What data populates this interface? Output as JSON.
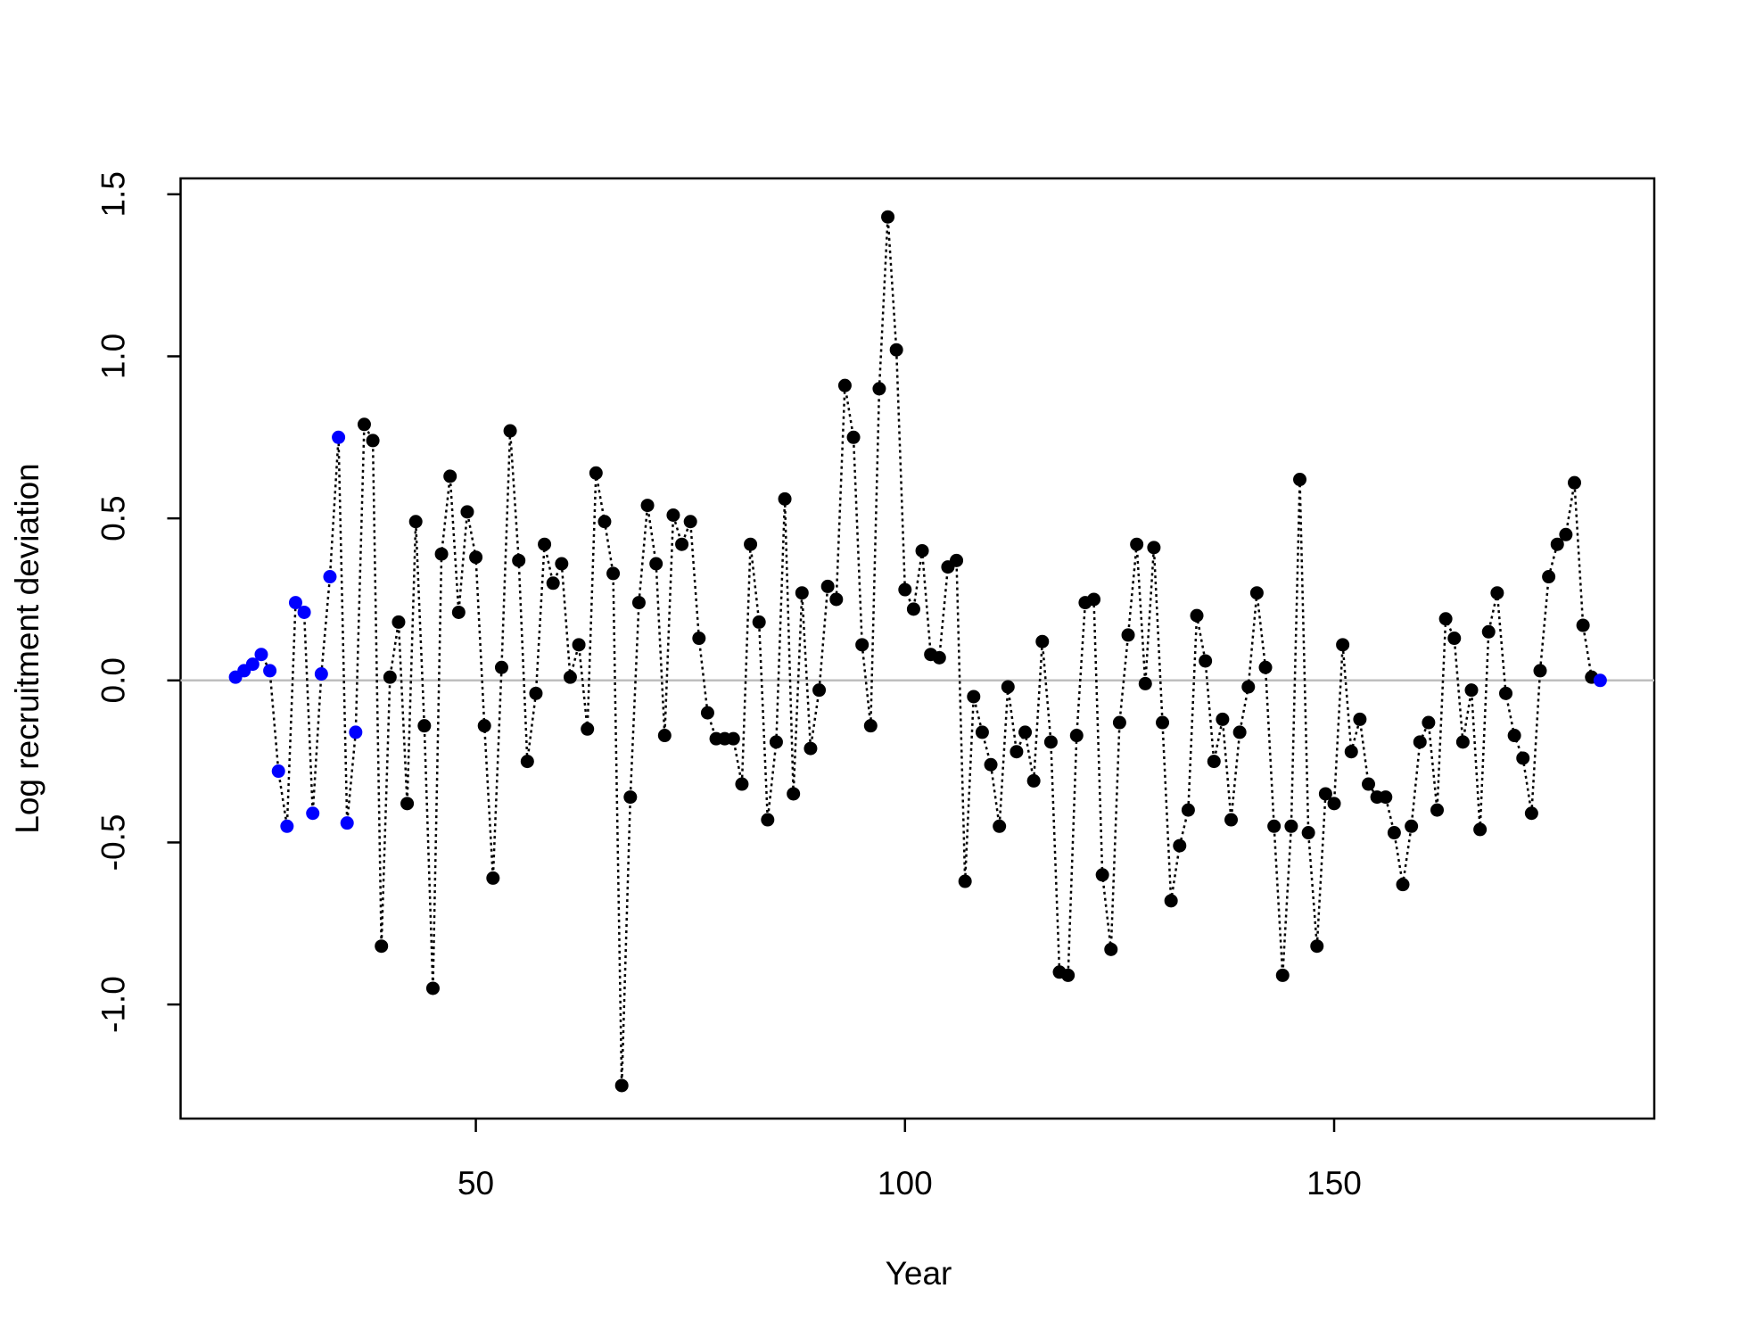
{
  "chart_data": {
    "type": "scatter",
    "xlabel": "Year",
    "ylabel": "Log recruitment deviation",
    "x": [
      22,
      23,
      24,
      25,
      26,
      27,
      28,
      29,
      30,
      31,
      32,
      33,
      34,
      35,
      36,
      37,
      38,
      39,
      40,
      41,
      42,
      43,
      44,
      45,
      46,
      47,
      48,
      49,
      50,
      51,
      52,
      53,
      54,
      55,
      56,
      57,
      58,
      59,
      60,
      61,
      62,
      63,
      64,
      65,
      66,
      67,
      68,
      69,
      70,
      71,
      72,
      73,
      74,
      75,
      76,
      77,
      78,
      79,
      80,
      81,
      82,
      83,
      84,
      85,
      86,
      87,
      88,
      89,
      90,
      91,
      92,
      93,
      94,
      95,
      96,
      97,
      98,
      99,
      100,
      101,
      102,
      103,
      104,
      105,
      106,
      107,
      108,
      109,
      110,
      111,
      112,
      113,
      114,
      115,
      116,
      117,
      118,
      119,
      120,
      121,
      122,
      123,
      124,
      125,
      126,
      127,
      128,
      129,
      130,
      131,
      132,
      133,
      134,
      135,
      136,
      137,
      138,
      139,
      140,
      141,
      142,
      143,
      144,
      145,
      146,
      147,
      148,
      149,
      150,
      151,
      152,
      153,
      154,
      155,
      156,
      157,
      158,
      159,
      160,
      161,
      162,
      163,
      164,
      165,
      166,
      167,
      168,
      169,
      170,
      171,
      172,
      173,
      174,
      175,
      176,
      177,
      178,
      179,
      180,
      181
    ],
    "values": [
      0.01,
      0.03,
      0.05,
      0.08,
      0.03,
      -0.28,
      -0.45,
      0.24,
      0.21,
      -0.41,
      0.02,
      0.32,
      0.75,
      -0.44,
      -0.16,
      0.79,
      0.74,
      -0.82,
      0.01,
      0.18,
      -0.38,
      0.49,
      -0.14,
      -0.95,
      0.39,
      0.63,
      0.21,
      0.52,
      0.38,
      -0.14,
      -0.61,
      0.04,
      0.77,
      0.37,
      -0.25,
      -0.04,
      0.42,
      0.3,
      0.36,
      0.01,
      0.11,
      -0.15,
      0.64,
      0.49,
      0.33,
      -1.25,
      -0.36,
      0.24,
      0.54,
      0.36,
      -0.17,
      0.51,
      0.42,
      0.49,
      0.13,
      -0.1,
      -0.18,
      -0.18,
      -0.18,
      -0.32,
      0.42,
      0.18,
      -0.43,
      -0.19,
      0.56,
      -0.35,
      0.27,
      -0.21,
      -0.03,
      0.29,
      0.25,
      0.91,
      0.75,
      0.11,
      -0.14,
      0.9,
      1.43,
      1.02,
      0.28,
      0.22,
      0.4,
      0.08,
      0.07,
      0.35,
      0.37,
      -0.62,
      -0.05,
      -0.16,
      -0.26,
      -0.45,
      -0.02,
      -0.22,
      -0.16,
      -0.31,
      0.12,
      -0.19,
      -0.9,
      -0.91,
      -0.17,
      0.24,
      0.25,
      -0.6,
      -0.83,
      -0.13,
      0.14,
      0.42,
      -0.01,
      0.41,
      -0.13,
      -0.68,
      -0.51,
      -0.4,
      0.2,
      0.06,
      -0.25,
      -0.12,
      -0.43,
      -0.16,
      -0.02,
      0.27,
      0.04,
      -0.45,
      -0.91,
      -0.45,
      0.62,
      -0.47,
      -0.82,
      -0.35,
      -0.38,
      0.11,
      -0.22,
      -0.12,
      -0.32,
      -0.36,
      -0.36,
      -0.47,
      -0.63,
      -0.45,
      -0.19,
      -0.13,
      -0.4,
      0.19,
      0.13,
      -0.19,
      -0.03,
      -0.46,
      0.15,
      0.27,
      -0.04,
      -0.17,
      -0.24,
      -0.41,
      0.03,
      0.32,
      0.42,
      0.45,
      0.61,
      0.17,
      0.01,
      0.0
    ],
    "colors": [
      "#0000ff",
      "#0000ff",
      "#0000ff",
      "#0000ff",
      "#0000ff",
      "#0000ff",
      "#0000ff",
      "#0000ff",
      "#0000ff",
      "#0000ff",
      "#0000ff",
      "#0000ff",
      "#0000ff",
      "#0000ff",
      "#0000ff",
      "#000000",
      "#000000",
      "#000000",
      "#000000",
      "#000000",
      "#000000",
      "#000000",
      "#000000",
      "#000000",
      "#000000",
      "#000000",
      "#000000",
      "#000000",
      "#000000",
      "#000000",
      "#000000",
      "#000000",
      "#000000",
      "#000000",
      "#000000",
      "#000000",
      "#000000",
      "#000000",
      "#000000",
      "#000000",
      "#000000",
      "#000000",
      "#000000",
      "#000000",
      "#000000",
      "#000000",
      "#000000",
      "#000000",
      "#000000",
      "#000000",
      "#000000",
      "#000000",
      "#000000",
      "#000000",
      "#000000",
      "#000000",
      "#000000",
      "#000000",
      "#000000",
      "#000000",
      "#000000",
      "#000000",
      "#000000",
      "#000000",
      "#000000",
      "#000000",
      "#000000",
      "#000000",
      "#000000",
      "#000000",
      "#000000",
      "#000000",
      "#000000",
      "#000000",
      "#000000",
      "#000000",
      "#000000",
      "#000000",
      "#000000",
      "#000000",
      "#000000",
      "#000000",
      "#000000",
      "#000000",
      "#000000",
      "#000000",
      "#000000",
      "#000000",
      "#000000",
      "#000000",
      "#000000",
      "#000000",
      "#000000",
      "#000000",
      "#000000",
      "#000000",
      "#000000",
      "#000000",
      "#000000",
      "#000000",
      "#000000",
      "#000000",
      "#000000",
      "#000000",
      "#000000",
      "#000000",
      "#000000",
      "#000000",
      "#000000",
      "#000000",
      "#000000",
      "#000000",
      "#000000",
      "#000000",
      "#000000",
      "#000000",
      "#000000",
      "#000000",
      "#000000",
      "#000000",
      "#000000",
      "#000000",
      "#000000",
      "#000000",
      "#000000",
      "#000000",
      "#000000",
      "#000000",
      "#000000",
      "#000000",
      "#000000",
      "#000000",
      "#000000",
      "#000000",
      "#000000",
      "#000000",
      "#000000",
      "#000000",
      "#000000",
      "#000000",
      "#000000",
      "#000000",
      "#000000",
      "#000000",
      "#000000",
      "#000000",
      "#000000",
      "#000000",
      "#000000",
      "#000000",
      "#000000",
      "#000000",
      "#000000",
      "#000000",
      "#000000",
      "#000000",
      "#000000",
      "#000000",
      "#000000",
      "#0000ff"
    ],
    "line_color": "#000000",
    "reference_line": 0,
    "reference_color": "#bebebe",
    "xlim": [
      15.6,
      187.3
    ],
    "ylim": [
      -1.352,
      1.549
    ],
    "xticks": [
      50,
      100,
      150
    ],
    "yticks": [
      {
        "value": -1,
        "label": "-1.0"
      },
      -0.5,
      {
        "value": 0,
        "label": "0.0"
      },
      0.5,
      {
        "value": 1,
        "label": "1.0"
      },
      1.5
    ]
  }
}
